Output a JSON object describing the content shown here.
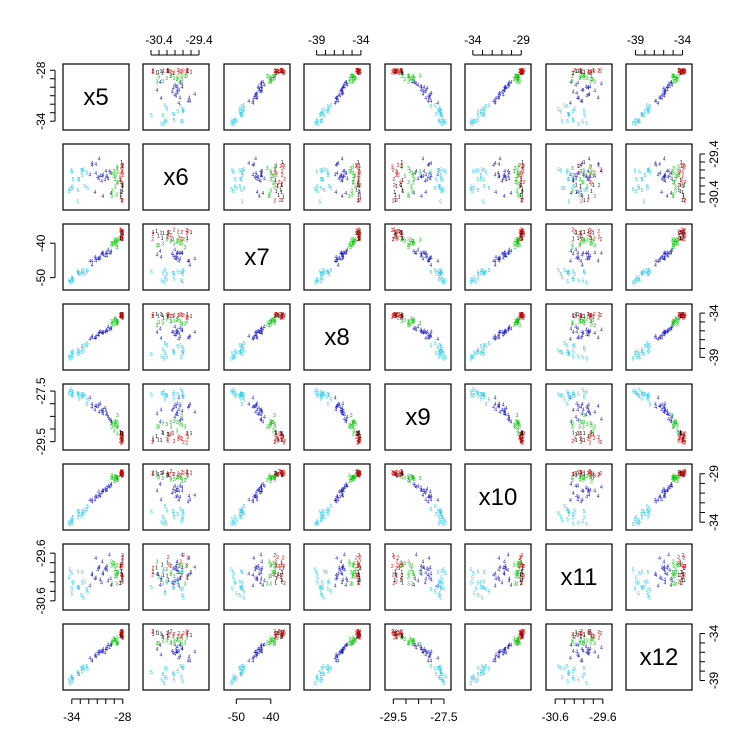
{
  "chart_data": {
    "type": "scatter",
    "subtype": "scatterplot-matrix",
    "variables": [
      "x5",
      "x6",
      "x7",
      "x8",
      "x9",
      "x10",
      "x11",
      "x12"
    ],
    "axis_ranges": {
      "x5": [
        -34.8,
        -27.5
      ],
      "x6": [
        -30.75,
        -29.2
      ],
      "x7": [
        -53,
        -35
      ],
      "x8": [
        -40.2,
        -33.2
      ],
      "x9": [
        -29.75,
        -27.3
      ],
      "x10": [
        -34.6,
        -28.2
      ],
      "x11": [
        -30.75,
        -29.45
      ],
      "x12": [
        -39.8,
        -33.2
      ]
    },
    "ticks": {
      "x5": {
        "labels": [
          "-34",
          "-28"
        ],
        "positions": [
          -34,
          -28
        ],
        "minor": [
          -33,
          -32,
          -31,
          -30,
          -29
        ]
      },
      "x6": {
        "labels": [
          "-30.4",
          "-29.4"
        ],
        "positions": [
          -30.4,
          -29.4
        ],
        "minor": [
          -30.6,
          -30.2,
          -30.0,
          -29.8,
          -29.6
        ]
      },
      "x7": {
        "labels": [
          "-50",
          "-40"
        ],
        "positions": [
          -50,
          -40
        ],
        "minor": []
      },
      "x8": {
        "labels": [
          "-39",
          "-34"
        ],
        "positions": [
          -39,
          -34
        ],
        "minor": [
          -38,
          -37,
          -36,
          -35
        ]
      },
      "x9": {
        "labels": [
          "-29.5",
          "-27.5"
        ],
        "positions": [
          -29.5,
          -27.5
        ],
        "minor": [
          -29.0,
          -28.5,
          -28.0
        ]
      },
      "x10": {
        "labels": [
          "-34",
          "-29"
        ],
        "positions": [
          -34,
          -29
        ],
        "minor": [
          -33,
          -32,
          -31,
          -30
        ]
      },
      "x11": {
        "labels": [
          "-30.6",
          "-29.6"
        ],
        "positions": [
          -30.6,
          -29.6
        ],
        "minor": [
          -30.4,
          -30.2,
          -30.0,
          -29.8
        ]
      },
      "x12": {
        "labels": [
          "-39",
          "-34"
        ],
        "positions": [
          -39,
          -34
        ],
        "minor": [
          -38,
          -37,
          -36,
          -35
        ]
      }
    },
    "groups": [
      {
        "id": 1,
        "symbol": "1",
        "color": "#000000",
        "points": [
          [
            -28.0,
            -30.18,
            -36.88,
            -34.39,
            -29.19,
            -28.97,
            -29.8,
            -34.25
          ],
          [
            -28.12,
            -30.55,
            -36.73,
            -34.31,
            -29.43,
            -29.0,
            -29.99,
            -34.03
          ],
          [
            -28.3,
            -30.05,
            -38.58,
            -34.32,
            -29.14,
            -29.02,
            -30.22,
            -34.2
          ],
          [
            -28.12,
            -29.6,
            -36.67,
            -34.31,
            -29.16,
            -28.87,
            -29.99,
            -34.15
          ],
          [
            -28.07,
            -30.2,
            -38.0,
            -34.21,
            -29.38,
            -29.11,
            -30.07,
            -33.94
          ],
          [
            -28.1,
            -30.35,
            -36.87,
            -34.11,
            -29.44,
            -28.92,
            -30.16,
            -34.0
          ],
          [
            -28.07,
            -29.69,
            -38.43,
            -34.13,
            -29.16,
            -28.89,
            -30.12,
            -34.13
          ],
          [
            -28.22,
            -30.42,
            -37.72,
            -34.28,
            -29.42,
            -29.05,
            -30.04,
            -33.89
          ],
          [
            -28.07,
            -30.16,
            -36.78,
            -34.28,
            -29.2,
            -29.11,
            -30.16,
            -33.83
          ],
          [
            -28.25,
            -30.32,
            -38.42,
            -34.23,
            -29.12,
            -28.9,
            -29.84,
            -34.23
          ],
          [
            -28.02,
            -30.29,
            -37.09,
            -34.5,
            -29.15,
            -28.84,
            -30.06,
            -34.39
          ],
          [
            -28.25,
            -30.46,
            -36.42,
            -34.09,
            -29.27,
            -28.86,
            -29.9,
            -33.87
          ]
        ]
      },
      {
        "id": 2,
        "symbol": "2",
        "color": "#df0000",
        "points": [
          [
            -28.01,
            -30.17,
            -38.06,
            -34.11,
            -29.46,
            -29.03,
            -29.68,
            -34.4
          ],
          [
            -28.05,
            -30.56,
            -38.82,
            -34.33,
            -29.51,
            -28.94,
            -30.05,
            -33.75
          ],
          [
            -28.08,
            -30.55,
            -37.28,
            -34.11,
            -29.38,
            -28.89,
            -29.91,
            -33.77
          ],
          [
            -28.07,
            -30.14,
            -36.8,
            -34.28,
            -29.24,
            -29.1,
            -29.84,
            -34.09
          ],
          [
            -28.0,
            -29.92,
            -36.65,
            -34.29,
            -29.38,
            -28.96,
            -30.19,
            -34.39
          ],
          [
            -28.07,
            -29.86,
            -38.62,
            -34.13,
            -29.36,
            -29.17,
            -29.78,
            -34.32
          ],
          [
            -28.03,
            -29.79,
            -38.79,
            -34.22,
            -29.51,
            -28.93,
            -29.64,
            -33.95
          ],
          [
            -28.02,
            -29.68,
            -36.41,
            -34.51,
            -29.31,
            -29.15,
            -29.69,
            -33.84
          ],
          [
            -28.21,
            -29.71,
            -36.16,
            -34.38,
            -29.54,
            -28.83,
            -29.87,
            -33.78
          ],
          [
            -28.2,
            -30.1,
            -37.55,
            -34.34,
            -29.18,
            -28.73,
            -29.87,
            -33.71
          ],
          [
            -28.29,
            -30.02,
            -36.03,
            -34.19,
            -29.48,
            -29.02,
            -30.23,
            -34.07
          ],
          [
            -28.0,
            -29.7,
            -37.09,
            -34.51,
            -29.18,
            -28.76,
            -30.09,
            -33.96
          ],
          [
            -28.13,
            -29.83,
            -36.68,
            -34.23,
            -29.38,
            -28.81,
            -30.06,
            -34.25
          ],
          [
            -28.28,
            -29.91,
            -38.38,
            -34.19,
            -29.3,
            -29.11,
            -29.87,
            -33.96
          ]
        ]
      },
      {
        "id": 3,
        "symbol": "3",
        "color": "#00c000",
        "points": [
          [
            -28.65,
            -29.71,
            -38.85,
            -34.89,
            -29.17,
            -29.34,
            -29.85,
            -34.45
          ],
          [
            -29.04,
            -29.95,
            -39.26,
            -34.78,
            -29.05,
            -29.39,
            -29.81,
            -34.56
          ],
          [
            -28.74,
            -30.41,
            -40.45,
            -34.99,
            -28.91,
            -29.35,
            -30.09,
            -35.02
          ],
          [
            -29.25,
            -30.31,
            -40.07,
            -35.04,
            -28.75,
            -29.46,
            -30.24,
            -34.74
          ],
          [
            -28.65,
            -30.11,
            -39.35,
            -34.88,
            -28.72,
            -29.4,
            -30.04,
            -34.93
          ],
          [
            -29.33,
            -29.88,
            -39.95,
            -34.87,
            -28.76,
            -29.31,
            -29.86,
            -34.97
          ],
          [
            -29.31,
            -30.45,
            -40.49,
            -35.33,
            -28.9,
            -29.18,
            -29.77,
            -34.99
          ],
          [
            -28.69,
            -29.75,
            -41.08,
            -35.16,
            -28.9,
            -29.63,
            -30.24,
            -34.96
          ],
          [
            -28.63,
            -29.84,
            -38.93,
            -35.1,
            -28.45,
            -29.45,
            -29.99,
            -35.11
          ],
          [
            -28.61,
            -30.1,
            -38.9,
            -34.88,
            -28.9,
            -29.59,
            -30.01,
            -34.97
          ],
          [
            -28.9,
            -30.21,
            -38.91,
            -34.62,
            -28.8,
            -29.22,
            -29.93,
            -34.75
          ],
          [
            -29.03,
            -29.83,
            -40.12,
            -35.28,
            -28.85,
            -29.76,
            -29.84,
            -34.54
          ],
          [
            -28.91,
            -30.02,
            -40.03,
            -34.85,
            -28.68,
            -29.56,
            -30.08,
            -34.76
          ],
          [
            -28.85,
            -29.94,
            -39.55,
            -34.68,
            -28.72,
            -29.34,
            -29.99,
            -34.7
          ]
        ]
      },
      {
        "id": 4,
        "symbol": "4",
        "color": "#2020d0",
        "points": [
          [
            -30.5,
            -30.07,
            -43.02,
            -36.16,
            -28.24,
            -31.0,
            -30.22,
            -35.87
          ],
          [
            -29.9,
            -29.94,
            -42.81,
            -35.85,
            -28.42,
            -30.4,
            -29.95,
            -35.38
          ],
          [
            -31.2,
            -29.88,
            -44.4,
            -36.67,
            -28.07,
            -31.39,
            -30.11,
            -36.39
          ],
          [
            -31.63,
            -29.63,
            -46.38,
            -36.56,
            -28.02,
            -31.68,
            -30.03,
            -36.88
          ],
          [
            -30.1,
            -30.04,
            -43.5,
            -36.13,
            -28.17,
            -30.55,
            -29.92,
            -36.02
          ],
          [
            -31.19,
            -29.65,
            -44.98,
            -36.75,
            -28.09,
            -31.31,
            -29.7,
            -36.45
          ],
          [
            -29.44,
            -29.87,
            -42.81,
            -35.67,
            -28.65,
            -30.23,
            -30.13,
            -35.24
          ],
          [
            -30.41,
            -29.95,
            -42.64,
            -36.25,
            -28.33,
            -30.74,
            -29.77,
            -35.98
          ],
          [
            -30.34,
            -30.45,
            -43.33,
            -36.11,
            -28.39,
            -30.75,
            -30.04,
            -35.63
          ],
          [
            -29.9,
            -29.97,
            -43.7,
            -36.02,
            -28.4,
            -30.66,
            -29.87,
            -35.57
          ],
          [
            -31.88,
            -29.91,
            -45.21,
            -36.91,
            -27.75,
            -31.69,
            -30.28,
            -36.61
          ],
          [
            -29.73,
            -30.01,
            -41.85,
            -35.54,
            -28.53,
            -30.26,
            -30.17,
            -35.16
          ],
          [
            -30.77,
            -29.51,
            -44.43,
            -36.12,
            -28.33,
            -31.2,
            -29.89,
            -35.94
          ],
          [
            -29.36,
            -30.37,
            -42.32,
            -35.72,
            -28.7,
            -30.06,
            -30.27,
            -35.22
          ],
          [
            -30.66,
            -29.94,
            -44.11,
            -36.07,
            -28.0,
            -31.29,
            -30.15,
            -35.89
          ],
          [
            -31.28,
            -30.35,
            -43.96,
            -36.84,
            -28.22,
            -31.64,
            -30.13,
            -36.23
          ],
          [
            -29.99,
            -29.82,
            -42.66,
            -35.98,
            -28.29,
            -30.71,
            -29.91,
            -35.65
          ],
          [
            -31.63,
            -29.67,
            -45.19,
            -36.78,
            -28.12,
            -31.86,
            -30.06,
            -36.86
          ],
          [
            -30.35,
            -29.91,
            -42.81,
            -36.27,
            -28.22,
            -30.79,
            -30.01,
            -35.86
          ],
          [
            -30.95,
            -29.98,
            -44.57,
            -36.39,
            -28.11,
            -31.34,
            -29.94,
            -35.95
          ],
          [
            -29.57,
            -29.83,
            -42.89,
            -35.86,
            -28.6,
            -30.35,
            -29.63,
            -35.49
          ],
          [
            -30.86,
            -30.01,
            -44.17,
            -36.46,
            -28.04,
            -30.85,
            -29.9,
            -36.18
          ]
        ]
      },
      {
        "id": 5,
        "symbol": "5",
        "color": "#20c8e8",
        "points": [
          [
            -32.15,
            -30.25,
            -47.76,
            -37.38,
            -27.84,
            -32.33,
            -30.4,
            -37.72
          ],
          [
            -33.24,
            -30.3,
            -48.52,
            -38.13,
            -27.58,
            -33.46,
            -29.98,
            -38.31
          ],
          [
            -32.22,
            -29.86,
            -48.35,
            -37.68,
            -28.01,
            -32.63,
            -30.35,
            -37.47
          ],
          [
            -34.31,
            -30.33,
            -50.82,
            -38.88,
            -27.59,
            -34.03,
            -30.11,
            -38.92
          ],
          [
            -33.29,
            -30.59,
            -48.23,
            -38.63,
            -27.63,
            -32.91,
            -30.31,
            -38.1
          ],
          [
            -33.17,
            -30.04,
            -48.62,
            -38.29,
            -27.61,
            -32.87,
            -30.33,
            -38.28
          ],
          [
            -34.0,
            -29.81,
            -51.14,
            -38.53,
            -27.51,
            -33.68,
            -30.34,
            -39.06
          ],
          [
            -32.77,
            -29.93,
            -48.25,
            -37.72,
            -27.61,
            -33.13,
            -30.22,
            -37.99
          ],
          [
            -32.86,
            -29.81,
            -49.0,
            -38.41,
            -27.69,
            -33.43,
            -30.48,
            -37.68
          ],
          [
            -33.97,
            -30.25,
            -49.9,
            -38.47,
            -27.65,
            -33.84,
            -30.45,
            -38.67
          ],
          [
            -34.04,
            -29.84,
            -50.8,
            -38.97,
            -27.44,
            -33.94,
            -30.02,
            -38.58
          ],
          [
            -32.62,
            -29.79,
            -47.81,
            -38.2,
            -27.63,
            -33.04,
            -30.53,
            -37.53
          ],
          [
            -34.22,
            -30.27,
            -51.37,
            -39.14,
            -27.51,
            -34.2,
            -29.94,
            -39.26
          ],
          [
            -32.75,
            -29.8,
            -48.21,
            -37.86,
            -27.73,
            -32.82,
            -29.99,
            -37.66
          ],
          [
            -33.91,
            -30.21,
            -50.41,
            -38.91,
            -27.7,
            -34.13,
            -30.22,
            -38.67
          ],
          [
            -32.48,
            -30.2,
            -48.95,
            -37.6,
            -27.66,
            -32.81,
            -30.19,
            -37.74
          ],
          [
            -33.86,
            -30.02,
            -50.3,
            -38.36,
            -27.55,
            -33.47,
            -30.22,
            -38.9
          ],
          [
            -33.15,
            -30.03,
            -48.77,
            -38.49,
            -27.8,
            -33.14,
            -30.31,
            -38.33
          ]
        ]
      }
    ]
  }
}
